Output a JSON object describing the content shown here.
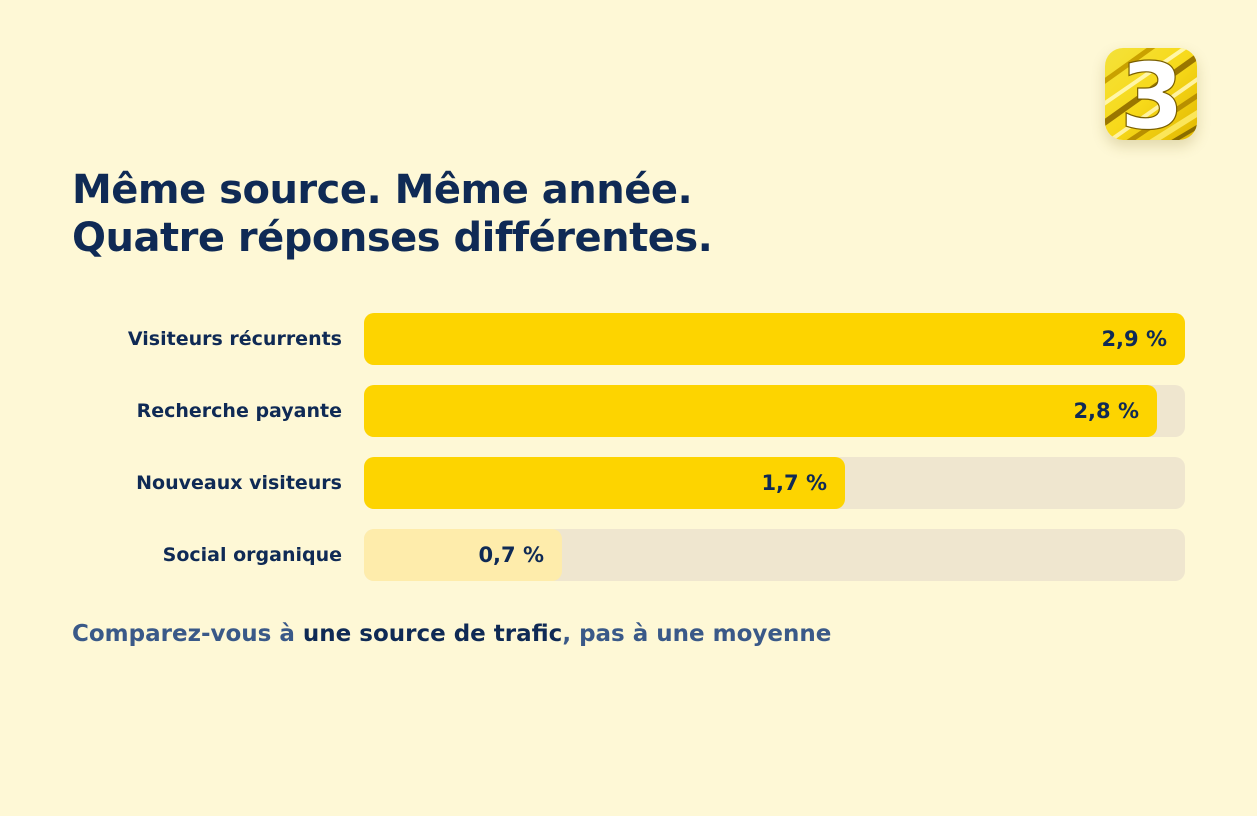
{
  "logo": {
    "glyph": "3",
    "colors": {
      "background": "#f7d91a",
      "stripe_dark": "#8a6d00",
      "stripe_light": "#fff6a8",
      "glyph": "#ffffff"
    }
  },
  "title_lines": [
    "Même source. Même année.",
    "Quatre réponses différentes."
  ],
  "chart_data": {
    "type": "bar",
    "orientation": "horizontal",
    "title": "Même source. Même année. Quatre réponses différentes.",
    "categories": [
      "Visiteurs récurrents",
      "Recherche payante",
      "Nouveaux visiteurs",
      "Social organique"
    ],
    "values": [
      2.9,
      2.8,
      1.7,
      0.7
    ],
    "value_labels": [
      "2,9 %",
      "2,8 %",
      "1,7 %",
      "0,7 %"
    ],
    "unit": "%",
    "xlim": [
      0,
      2.9
    ],
    "grid": false,
    "legend": "none",
    "colors": {
      "bar": "#fdd400",
      "bar_highlight_low": "#feecab",
      "track": "#efe6cf",
      "text": "#0f2a55"
    }
  },
  "subtitle": {
    "part1": "Comparez-vous à ",
    "part2": "une source de trafic",
    "part3": ", pas à une moyenne"
  },
  "colors": {
    "background": "#fef8d6",
    "title": "#0f2a55",
    "subtitle_muted": "#3a5988"
  }
}
